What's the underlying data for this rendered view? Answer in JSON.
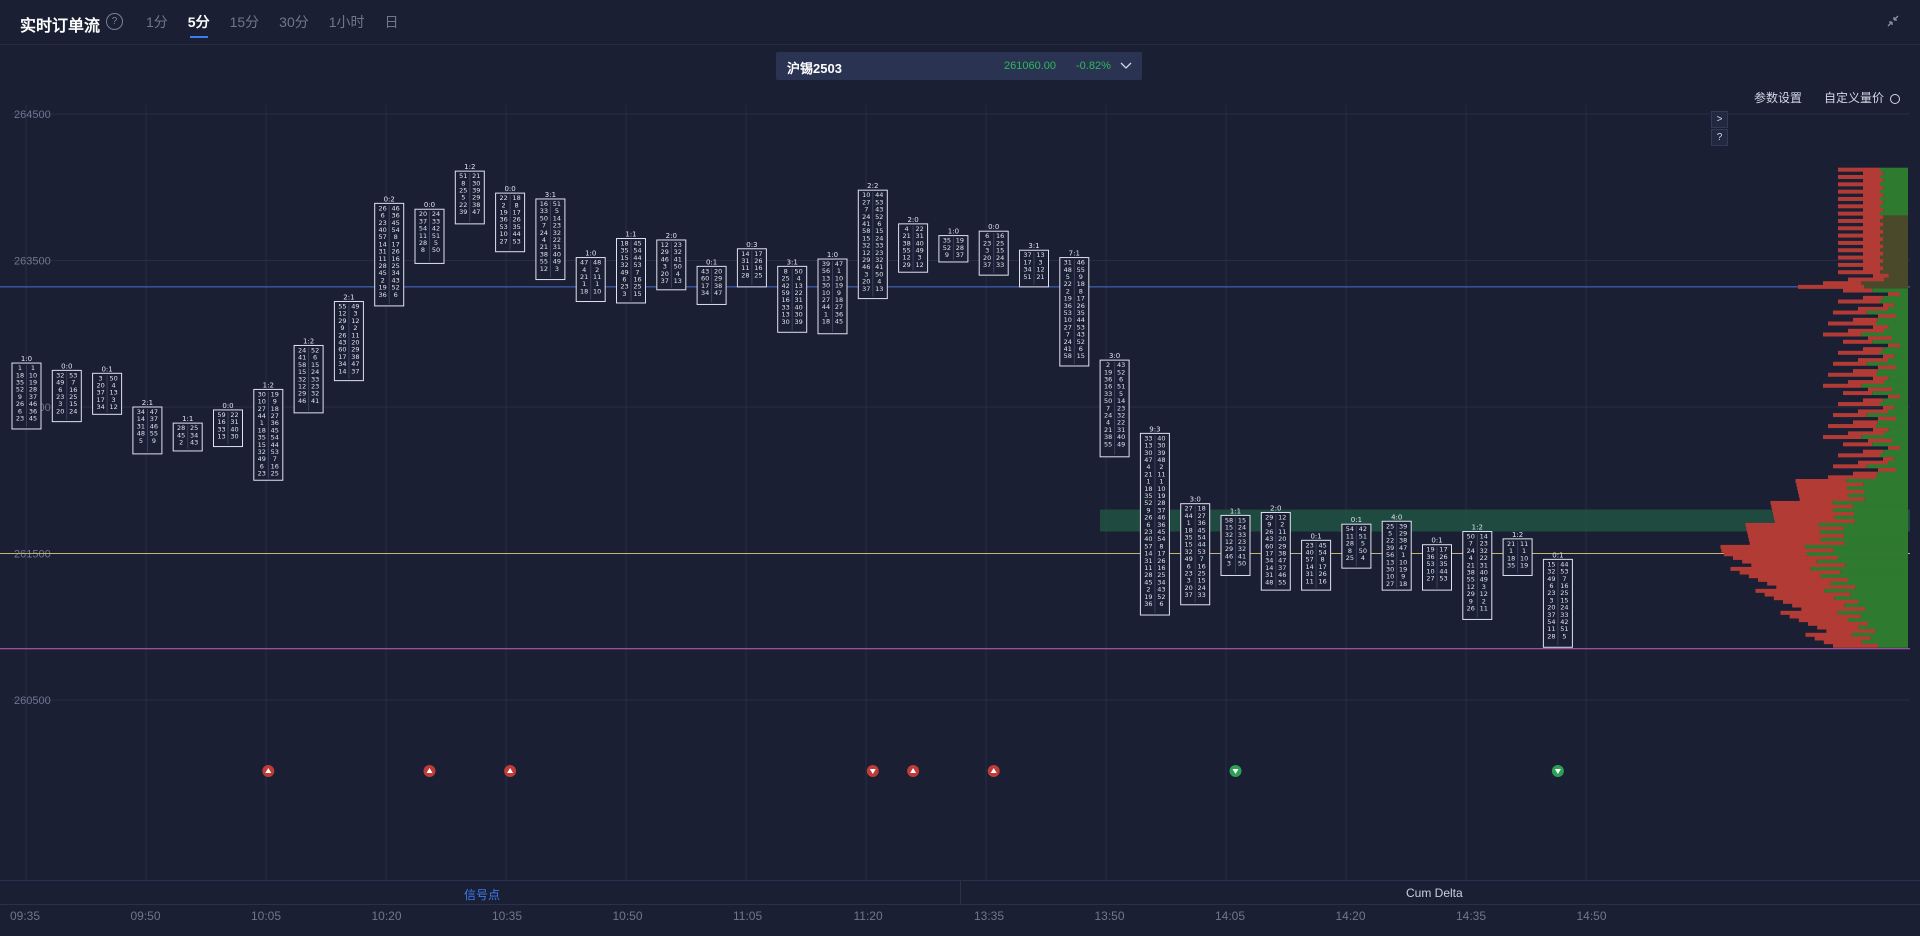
{
  "header": {
    "title": "实时订单流",
    "help": "?",
    "tabs": [
      "1分",
      "5分",
      "15分",
      "30分",
      "1小时",
      "日"
    ],
    "active_tab": "5分"
  },
  "symbol": {
    "name": "沪锡2503",
    "price": "261060.00",
    "change": "-0.82%"
  },
  "toolbar": {
    "params": "参数设置",
    "custom_price": "自定义量价"
  },
  "side_buttons": [
    ">",
    "?"
  ],
  "price_axis": {
    "labels": [
      "264500",
      "263500",
      "262500",
      "261500",
      "260500"
    ],
    "values": [
      264500,
      263500,
      262500,
      261500,
      260500
    ]
  },
  "time_axis": [
    "09:35",
    "09:50",
    "10:05",
    "10:20",
    "10:35",
    "10:50",
    "11:05",
    "11:20",
    "13:35",
    "13:50",
    "14:05",
    "14:20",
    "14:35",
    "14:50"
  ],
  "bottom_panels": {
    "signal": "信号点",
    "cum_delta": "Cum Delta"
  },
  "colors": {
    "background": "#1b1f33",
    "up": "#2fb85a",
    "down": "#d9423a",
    "accent": "#3d7bf0",
    "poc_line": "#c9b36a",
    "low_line": "#c060c0"
  },
  "chart_data": {
    "type": "footprint",
    "reference_lines": [
      {
        "price": 263320,
        "color": "#4a6fd0"
      },
      {
        "price": 261500,
        "color": "#c9b36a"
      },
      {
        "price": 260850,
        "color": "#c060c0"
      }
    ],
    "candles": [
      {
        "time": "09:35",
        "high": 262800,
        "low": 262350,
        "header": "1:0"
      },
      {
        "time": "09:40",
        "high": 262750,
        "low": 262400,
        "header": "0:0"
      },
      {
        "time": "09:45",
        "high": 262730,
        "low": 262450,
        "header": "0:1"
      },
      {
        "time": "09:50",
        "high": 262500,
        "low": 262180,
        "header": "2:1"
      },
      {
        "time": "09:55",
        "high": 262390,
        "low": 262200,
        "header": "1:1"
      },
      {
        "time": "10:00",
        "high": 262480,
        "low": 262230,
        "header": "0:0"
      },
      {
        "time": "10:05",
        "high": 262620,
        "low": 262000,
        "header": "1:2"
      },
      {
        "time": "10:10",
        "high": 262920,
        "low": 262460,
        "header": "1:2"
      },
      {
        "time": "10:15",
        "high": 263220,
        "low": 262680,
        "header": "2:1"
      },
      {
        "time": "10:20",
        "high": 263890,
        "low": 263190,
        "header": "0:2"
      },
      {
        "time": "10:25",
        "high": 263850,
        "low": 263480,
        "header": "0:0"
      },
      {
        "time": "10:30",
        "high": 264110,
        "low": 263750,
        "header": "1:2"
      },
      {
        "time": "10:35",
        "high": 263960,
        "low": 263560,
        "header": "0:0"
      },
      {
        "time": "10:40",
        "high": 263920,
        "low": 263370,
        "header": "3:1"
      },
      {
        "time": "10:45",
        "high": 263520,
        "low": 263220,
        "header": "1:0"
      },
      {
        "time": "10:50",
        "high": 263650,
        "low": 263210,
        "header": "1:1"
      },
      {
        "time": "10:55",
        "high": 263640,
        "low": 263300,
        "header": "2:0"
      },
      {
        "time": "11:00",
        "high": 263460,
        "low": 263200,
        "header": "0:1"
      },
      {
        "time": "11:05",
        "high": 263580,
        "low": 263320,
        "header": "0:3"
      },
      {
        "time": "11:10",
        "high": 263460,
        "low": 263010,
        "header": "3:1"
      },
      {
        "time": "11:15",
        "high": 263510,
        "low": 263000,
        "header": "1:0"
      },
      {
        "time": "11:20",
        "high": 263980,
        "low": 263240,
        "header": "2:2"
      },
      {
        "time": "11:25",
        "high": 263750,
        "low": 263420,
        "header": "2:0"
      },
      {
        "time": "13:35",
        "high": 263670,
        "low": 263490,
        "header": "1:0"
      },
      {
        "time": "13:40",
        "high": 263700,
        "low": 263400,
        "header": "0:0"
      },
      {
        "time": "13:45",
        "high": 263570,
        "low": 263320,
        "header": "3:1"
      },
      {
        "time": "13:50",
        "high": 263520,
        "low": 262780,
        "header": "7:1"
      },
      {
        "time": "13:55",
        "high": 262820,
        "low": 262160,
        "header": "3:0"
      },
      {
        "time": "14:00",
        "high": 262320,
        "low": 261080,
        "header": "9:3"
      },
      {
        "time": "14:05",
        "high": 261840,
        "low": 261150,
        "header": "3:0"
      },
      {
        "time": "14:10",
        "high": 261760,
        "low": 261350,
        "header": "1:1"
      },
      {
        "time": "14:15",
        "high": 261780,
        "low": 261250,
        "header": "2:0"
      },
      {
        "time": "14:20",
        "high": 261590,
        "low": 261250,
        "header": "0:1"
      },
      {
        "time": "14:25",
        "high": 261700,
        "low": 261400,
        "header": "0:1"
      },
      {
        "time": "14:30",
        "high": 261720,
        "low": 261250,
        "header": "4:0"
      },
      {
        "time": "14:35",
        "high": 261560,
        "low": 261250,
        "header": "0:1"
      },
      {
        "time": "14:40",
        "high": 261650,
        "low": 261050,
        "header": "1:2"
      },
      {
        "time": "14:45",
        "high": 261600,
        "low": 261350,
        "header": "1:2"
      },
      {
        "time": "14:50",
        "high": 261460,
        "low": 260860,
        "header": "0:1"
      }
    ],
    "signals": [
      {
        "time": "10:05",
        "type": "up-red"
      },
      {
        "time": "10:25",
        "type": "up-red"
      },
      {
        "time": "10:35",
        "type": "up-red"
      },
      {
        "time": "11:20",
        "type": "down-red"
      },
      {
        "time": "11:25",
        "type": "up-red"
      },
      {
        "time": "13:40",
        "type": "up-red"
      },
      {
        "time": "14:10",
        "type": "down-green"
      },
      {
        "time": "14:50",
        "type": "down-green"
      }
    ]
  }
}
